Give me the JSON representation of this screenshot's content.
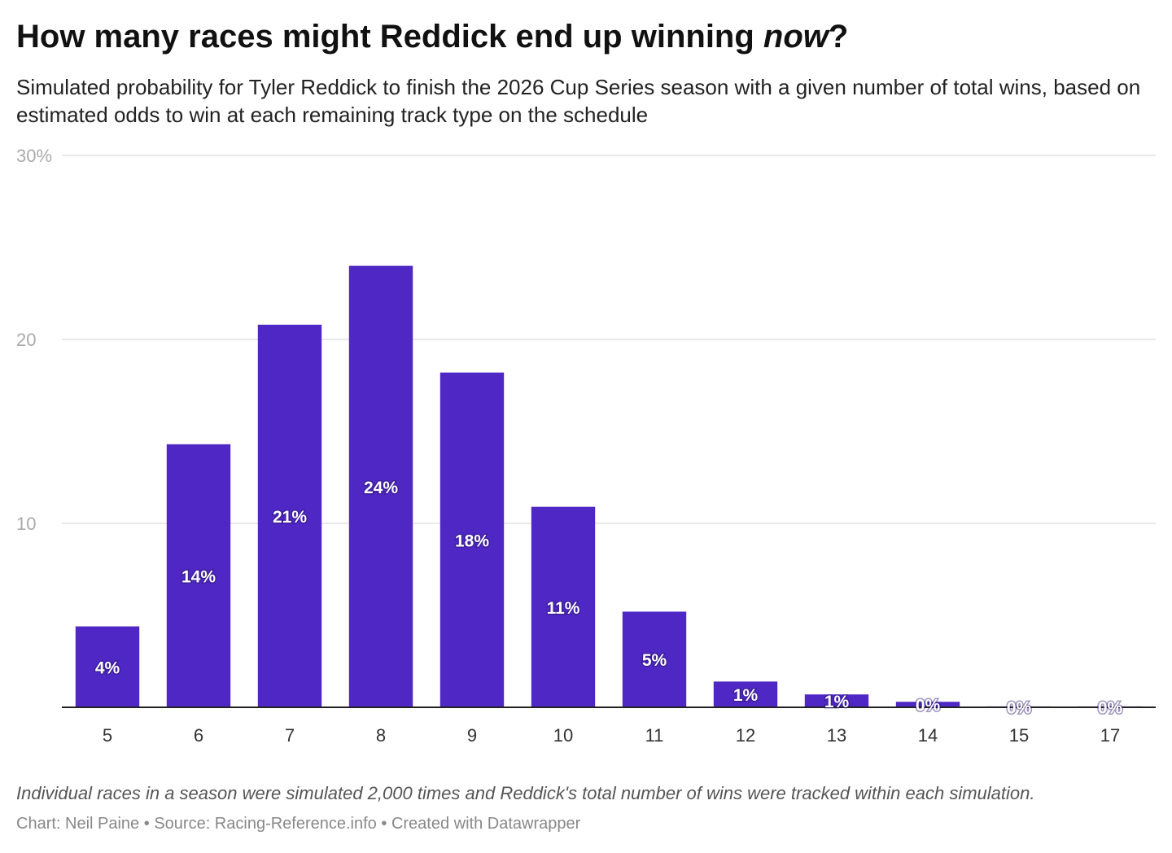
{
  "header": {
    "title_main": "How many races might Reddick end up winning ",
    "title_emph": "now",
    "title_end": "?",
    "subtitle": "Simulated probability for Tyler Reddick to finish the 2026 Cup Series season with a given number of total wins, based on estimated odds to win at each remaining track type on the schedule"
  },
  "chart_data": {
    "type": "bar",
    "categories": [
      "5",
      "6",
      "7",
      "8",
      "9",
      "10",
      "11",
      "12",
      "13",
      "14",
      "15",
      "17"
    ],
    "values": [
      4.4,
      14.3,
      20.8,
      24.0,
      18.2,
      10.9,
      5.2,
      1.4,
      0.7,
      0.3,
      0.05,
      0.05
    ],
    "data_labels": [
      "4%",
      "14%",
      "21%",
      "24%",
      "18%",
      "11%",
      "5%",
      "1%",
      "1%",
      "0%",
      "0%",
      "0%"
    ],
    "ylim": [
      0,
      30
    ],
    "y_ticks": [
      10,
      20,
      30
    ],
    "y_tick_labels": [
      "10",
      "20",
      "30%"
    ],
    "grid": true,
    "bar_color": "#4f27c4"
  },
  "footer": {
    "note": "Individual races in a season were simulated 2,000 times and Reddick's total number of wins were tracked within each simulation.",
    "chart_credit": "Chart: Neil Paine",
    "source": "Source: Racing-Reference.info",
    "created": "Created with Datawrapper",
    "separator": "•"
  }
}
